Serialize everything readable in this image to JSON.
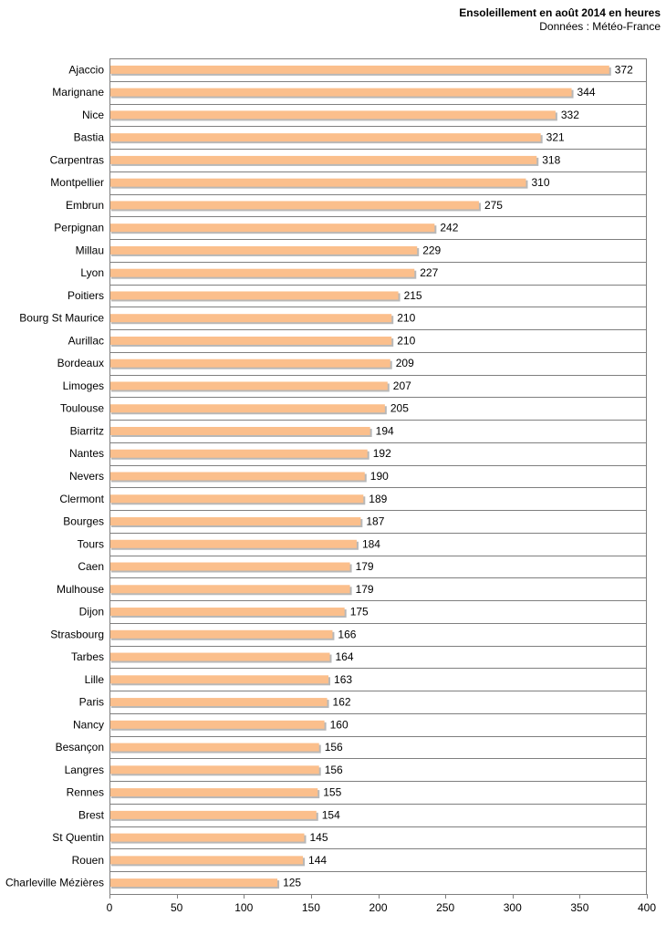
{
  "chart_data": {
    "type": "bar",
    "orientation": "horizontal",
    "title": "Ensoleillement en août 2014 en heures",
    "subtitle": "Données : Météo-France",
    "xlabel": "",
    "ylabel": "",
    "xlim": [
      0,
      400
    ],
    "x_ticks": [
      0,
      50,
      100,
      150,
      200,
      250,
      300,
      350,
      400
    ],
    "grid": "horizontal",
    "legend": "none",
    "bar_color": "#fbbf8c",
    "bar_shadow_color": "#b8b8b8",
    "categories": [
      "Ajaccio",
      "Marignane",
      "Nice",
      "Bastia",
      "Carpentras",
      "Montpellier",
      "Embrun",
      "Perpignan",
      "Millau",
      "Lyon",
      "Poitiers",
      "Bourg St Maurice",
      "Aurillac",
      "Bordeaux",
      "Limoges",
      "Toulouse",
      "Biarritz",
      "Nantes",
      "Nevers",
      "Clermont",
      "Bourges",
      "Tours",
      "Caen",
      "Mulhouse",
      "Dijon",
      "Strasbourg",
      "Tarbes",
      "Lille",
      "Paris",
      "Nancy",
      "Besançon",
      "Langres",
      "Rennes",
      "Brest",
      "St Quentin",
      "Rouen",
      "Charleville Mézières"
    ],
    "values": [
      372,
      344,
      332,
      321,
      318,
      310,
      275,
      242,
      229,
      227,
      215,
      210,
      210,
      209,
      207,
      205,
      194,
      192,
      190,
      189,
      187,
      184,
      179,
      179,
      175,
      166,
      164,
      163,
      162,
      160,
      156,
      156,
      155,
      154,
      145,
      144,
      125
    ]
  }
}
